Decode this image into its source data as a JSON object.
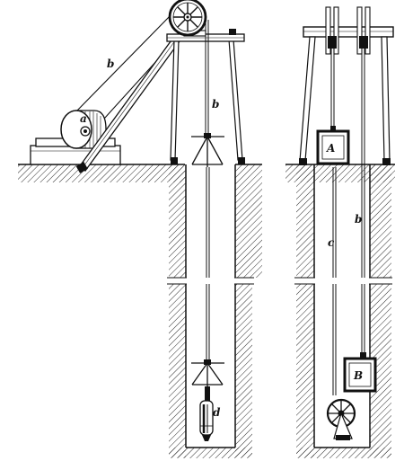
{
  "labels": {
    "drum": "a",
    "rope_left_upper": "b",
    "rope_left_shaft": "b",
    "rope_right": "b",
    "rope_right_c": "c",
    "pump": "d",
    "bucket_upper": "A",
    "bucket_lower": "B"
  },
  "colors": {
    "ink": "#111111",
    "paper": "#ffffff"
  }
}
